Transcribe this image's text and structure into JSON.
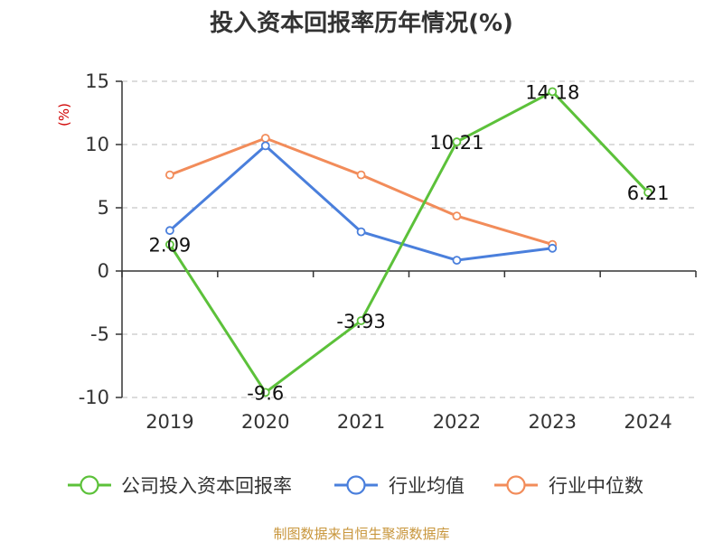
{
  "chart_data": {
    "type": "line",
    "title": "投入资本回报率历年情况(%)",
    "ylabel": "(%)",
    "xlabel": "",
    "categories": [
      "2019",
      "2020",
      "2021",
      "2022",
      "2023",
      "2024"
    ],
    "ylim": [
      -10,
      15
    ],
    "yticks": [
      15,
      10,
      5,
      0,
      -5,
      -10
    ],
    "ytick_labels": [
      "15",
      "10",
      "5",
      "0",
      "-5",
      "-10"
    ],
    "grid": true,
    "legend_position": "bottom",
    "series": [
      {
        "name": "公司投入资本回报率",
        "color": "#5cc13a",
        "values": [
          2.09,
          -9.6,
          -3.93,
          10.21,
          14.18,
          6.21
        ],
        "labels": [
          "2.09",
          "-9.6",
          "-3.93",
          "10.21",
          "14.18",
          "6.21"
        ]
      },
      {
        "name": "行业均值",
        "color": "#4a7fdc",
        "values": [
          3.2,
          9.9,
          3.1,
          0.85,
          1.8,
          null
        ]
      },
      {
        "name": "行业中位数",
        "color": "#f28c5a",
        "values": [
          7.6,
          10.5,
          7.6,
          4.35,
          2.1,
          null
        ]
      }
    ]
  },
  "source_text": "制图数据来自恒生聚源数据库"
}
